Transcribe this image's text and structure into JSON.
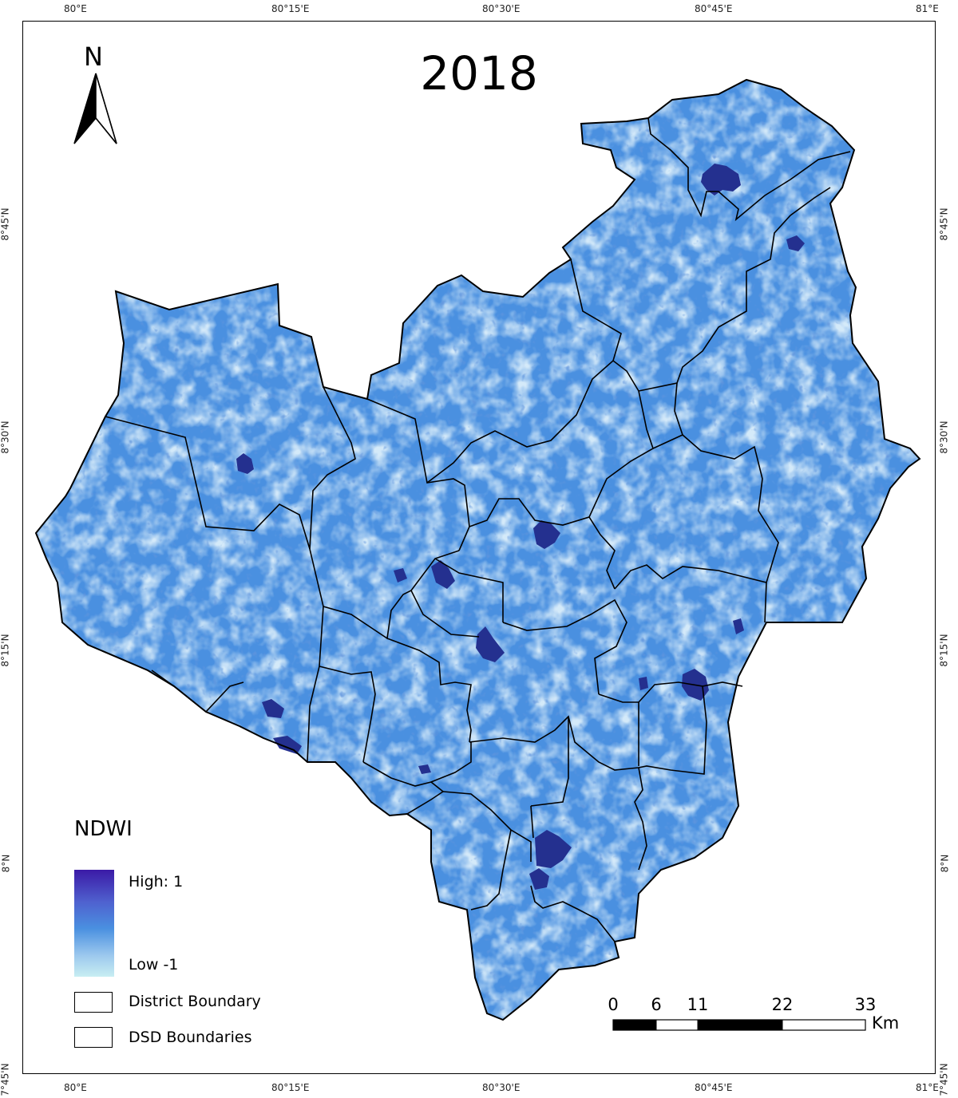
{
  "map": {
    "title": "2018",
    "north_label": "N",
    "top_ticks": [
      "80°E",
      "80°15'E",
      "80°30'E",
      "80°45'E",
      "81°E"
    ],
    "bottom_ticks": [
      "80°E",
      "80°15'E",
      "80°30'E",
      "80°45'E",
      "81°E"
    ],
    "left_ticks": [
      "8°45'N",
      "8°30'N",
      "8°15'N",
      "8°N",
      "7°45'N"
    ],
    "right_ticks": [
      "8°45'N",
      "8°30'N",
      "8°15'N",
      "8°N",
      "7°45'N"
    ],
    "raster_colors": {
      "base": "#4a90e0",
      "light": "#a8d0f0",
      "dark": "#1f3fa0"
    }
  },
  "legend": {
    "title": "NDWI",
    "ramp_high": "High: 1",
    "ramp_low": "Low -1",
    "ramp_colors": [
      "#3b1aa6",
      "#4a90e0",
      "#c8eef2"
    ],
    "district_label": "District Boundary",
    "dsd_label": "DSD Boundaries"
  },
  "scale_bar": {
    "labels": [
      "0",
      "6",
      "11",
      "22",
      "33"
    ],
    "unit": "Km"
  }
}
